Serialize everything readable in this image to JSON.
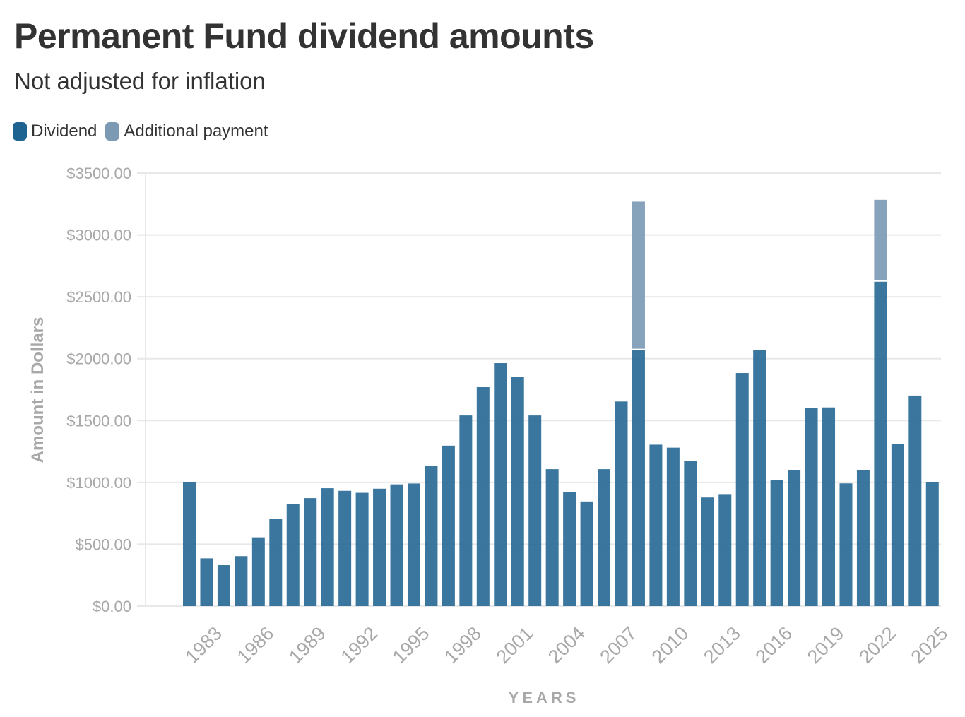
{
  "header": {
    "title": "Permanent Fund dividend amounts",
    "subtitle": "Not adjusted for inflation"
  },
  "legend": [
    {
      "label": "Dividend",
      "color": "#1f6391"
    },
    {
      "label": "Additional payment",
      "color": "#7d9ab5"
    }
  ],
  "chart_data": {
    "type": "bar",
    "stacked": true,
    "title": "Permanent Fund dividend amounts",
    "subtitle": "Not adjusted for inflation",
    "xlabel": "YEARS",
    "ylabel": "Amount in Dollars",
    "ylim": [
      0,
      3500
    ],
    "yticks": [
      0,
      500,
      1000,
      1500,
      2000,
      2500,
      3000,
      3500
    ],
    "ytick_labels": [
      "$0.00",
      "$500.00",
      "$1000.00",
      "$1500.00",
      "$2000.00",
      "$2500.00",
      "$3000.00",
      "$3500.00"
    ],
    "xtick_labels": [
      "1983",
      "1986",
      "1989",
      "1992",
      "1995",
      "1998",
      "2001",
      "2004",
      "2007",
      "2010",
      "2013",
      "2016",
      "2019",
      "2022",
      "2025"
    ],
    "grid": true,
    "legend_position": "top-left",
    "categories": [
      "1982",
      "1983",
      "1984",
      "1985",
      "1986",
      "1987",
      "1988",
      "1989",
      "1990",
      "1991",
      "1992",
      "1993",
      "1994",
      "1995",
      "1996",
      "1997",
      "1998",
      "1999",
      "2000",
      "2001",
      "2002",
      "2003",
      "2004",
      "2005",
      "2006",
      "2007",
      "2008",
      "2009",
      "2010",
      "2011",
      "2012",
      "2013",
      "2014",
      "2015",
      "2016",
      "2017",
      "2018",
      "2019",
      "2020",
      "2021",
      "2022",
      "2023",
      "2024",
      "2025"
    ],
    "series": [
      {
        "name": "Dividend",
        "color": "#1f6391",
        "values": [
          1000,
          386,
          331,
          404,
          556,
          708,
          827,
          873,
          953,
          932,
          916,
          949,
          984,
          991,
          1131,
          1297,
          1541,
          1770,
          1964,
          1851,
          1541,
          1107,
          920,
          846,
          1107,
          1654,
          2069,
          1305,
          1281,
          1174,
          878,
          900,
          1884,
          2072,
          1022,
          1100,
          1600,
          1606,
          992,
          1100,
          2622,
          1312,
          1702,
          1000
        ]
      },
      {
        "name": "Additional payment",
        "color": "#7d9ab5",
        "values": [
          0,
          0,
          0,
          0,
          0,
          0,
          0,
          0,
          0,
          0,
          0,
          0,
          0,
          0,
          0,
          0,
          0,
          0,
          0,
          0,
          0,
          0,
          0,
          0,
          0,
          0,
          1200,
          0,
          0,
          0,
          0,
          0,
          0,
          0,
          0,
          0,
          0,
          0,
          0,
          0,
          662,
          0,
          0,
          0
        ]
      }
    ]
  }
}
